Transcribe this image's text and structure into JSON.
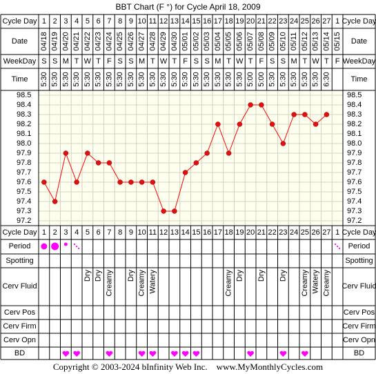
{
  "title": "BBT Chart (F °) for Cycle April 18, 2009",
  "copyright": "Copyright © 2003-2024 bInfinity Web Inc.    www.MyMonthlyCycles.com",
  "row_labels": {
    "cycle_day": "Cycle Day",
    "date": "Date",
    "weekday": "WeekDay",
    "time": "Time",
    "period": "Period",
    "spotting": "Spotting",
    "cerv_fluid": "Cerv Fluid",
    "cerv_pos": "Cerv Pos",
    "cerv_firm": "Cerv Firm",
    "cerv_opn": "Cerv Opn",
    "bd": "BD"
  },
  "colors": {
    "grid_background": "#fffff0",
    "grid_line": "#d4d4c0",
    "line": "#ff0000",
    "marker": "#dd1111",
    "period": "#ff00ff",
    "bd": "#ff00ff",
    "border": "#000000"
  },
  "chart_data": {
    "type": "line",
    "title": "BBT Chart (F °) for Cycle April 18, 2009",
    "cycle_days": [
      "1",
      "2",
      "3",
      "4",
      "5",
      "6",
      "7",
      "8",
      "9",
      "10",
      "11",
      "12",
      "13",
      "14",
      "15",
      "16",
      "17",
      "18",
      "19",
      "20",
      "21",
      "22",
      "23",
      "24",
      "25",
      "26",
      "27",
      "1"
    ],
    "dates": [
      "04/18",
      "04/19",
      "04/20",
      "04/21",
      "04/22",
      "04/23",
      "04/24",
      "04/25",
      "04/26",
      "04/27",
      "04/28",
      "04/29",
      "04/30",
      "05/01",
      "05/02",
      "05/03",
      "05/04",
      "05/05",
      "05/06",
      "05/07",
      "05/08",
      "05/09",
      "05/10",
      "05/11",
      "05/12",
      "05/13",
      "05/14",
      "05/15"
    ],
    "weekdays": [
      "S",
      "S",
      "M",
      "T",
      "W",
      "T",
      "F",
      "S",
      "S",
      "M",
      "T",
      "W",
      "T",
      "F",
      "S",
      "S",
      "M",
      "T",
      "W",
      "T",
      "F",
      "S",
      "S",
      "M",
      "T",
      "W",
      "T",
      "F"
    ],
    "times": [
      "5:30",
      "5:30",
      "5:30",
      "5:30",
      "5:30",
      "5:30",
      "5:30",
      "5:30",
      "5:30",
      "5:30",
      "5:30",
      "5:30",
      "5:30",
      "5:30",
      "5:30",
      "5:30",
      "5:30",
      "5:30",
      "5:30",
      "5:00",
      "5:00",
      "5:30",
      "5:30",
      "5:30",
      "5:30",
      "5:30",
      "6:30",
      ""
    ],
    "temperatures": [
      97.6,
      97.4,
      97.9,
      97.6,
      97.9,
      97.8,
      97.8,
      97.6,
      97.6,
      97.6,
      97.6,
      97.3,
      97.3,
      97.7,
      97.8,
      97.9,
      98.2,
      97.9,
      98.2,
      98.4,
      98.4,
      98.2,
      98.0,
      98.3,
      98.3,
      98.2,
      98.3,
      null
    ],
    "y_ticks": [
      "98.5",
      "98.4",
      "98.3",
      "98.2",
      "98.1",
      "98.0",
      "97.9",
      "97.8",
      "97.7",
      "97.6",
      "97.5",
      "97.4",
      "97.3",
      "97.2"
    ],
    "ylim": [
      97.2,
      98.5
    ],
    "period": [
      "heavy",
      "heavy",
      "light",
      "spotting",
      "",
      "",
      "",
      "",
      "",
      "",
      "",
      "",
      "",
      "",
      "",
      "",
      "",
      "",
      "",
      "",
      "",
      "",
      "",
      "",
      "",
      "",
      "",
      "spotting"
    ],
    "cerv_fluid": [
      "",
      "",
      "",
      "",
      "Dry",
      "Dry",
      "Creamy",
      "",
      "Dry",
      "Creamy",
      "Watery",
      "",
      "",
      "",
      "",
      "",
      "",
      "Creamy",
      "Dry",
      "",
      "Dry",
      "",
      "Dry",
      "",
      "Creamy",
      "Watery",
      "Creamy",
      ""
    ],
    "bd": [
      false,
      false,
      true,
      true,
      false,
      false,
      true,
      false,
      false,
      true,
      true,
      false,
      true,
      true,
      true,
      false,
      false,
      false,
      false,
      true,
      false,
      false,
      true,
      false,
      true,
      false,
      false,
      false
    ]
  }
}
